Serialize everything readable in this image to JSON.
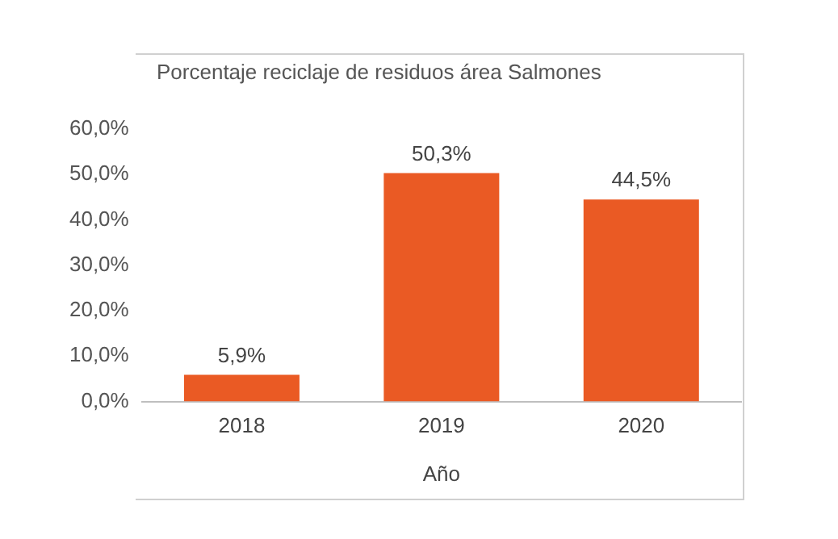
{
  "chart_data": {
    "type": "bar",
    "title": "Porcentaje reciclaje de residuos área Salmones",
    "xlabel": "Año",
    "categories": [
      "2018",
      "2019",
      "2020"
    ],
    "values": [
      5.9,
      50.3,
      44.5
    ],
    "value_labels": [
      "5,9%",
      "50,3%",
      "44,5%"
    ],
    "color": "#ea5a24",
    "ylim": [
      0,
      60
    ],
    "yticks": [
      {
        "value": 0,
        "label": "0,0%"
      },
      {
        "value": 10,
        "label": "10,0%"
      },
      {
        "value": 20,
        "label": "20,0%"
      },
      {
        "value": 30,
        "label": "30,0%"
      },
      {
        "value": 40,
        "label": "40,0%"
      },
      {
        "value": 50,
        "label": "50,0%"
      },
      {
        "value": 60,
        "label": "60,0%"
      }
    ],
    "grid": false,
    "legend": false
  }
}
